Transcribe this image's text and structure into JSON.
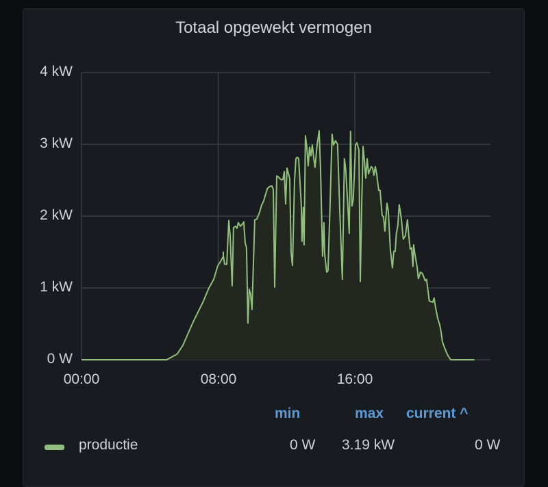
{
  "panel": {
    "title": "Totaal opgewekt vermogen"
  },
  "colors": {
    "series": "#91c07d",
    "fill": "#22271f",
    "grid": "#3a3d42",
    "legend_header": "#5b9ad6"
  },
  "axes": {
    "y_ticks": [
      "4 kW",
      "3 kW",
      "2 kW",
      "1 kW",
      "0 W"
    ],
    "x_ticks": [
      "00:00",
      "08:00",
      "16:00"
    ]
  },
  "legend": {
    "headers": {
      "min": "min",
      "max": "max",
      "current": "current ^"
    },
    "series": [
      {
        "name": "productie",
        "min": "0 W",
        "max": "3.19 kW",
        "current": "0 W"
      }
    ]
  },
  "chart_data": {
    "type": "area",
    "title": "Totaal opgewekt vermogen",
    "xlabel": "",
    "ylabel": "",
    "x_unit": "hours since 00:00",
    "y_unit": "kW",
    "xlim": [
      0,
      24
    ],
    "ylim": [
      0,
      4
    ],
    "x_tick_labels": [
      "00:00",
      "08:00",
      "16:00"
    ],
    "y_tick_labels": [
      "0 W",
      "1 kW",
      "2 kW",
      "3 kW",
      "4 kW"
    ],
    "grid": true,
    "legend_position": "bottom",
    "series": [
      {
        "name": "productie",
        "points": [
          [
            0.0,
            0.0
          ],
          [
            4.98,
            0.0
          ],
          [
            5.6,
            0.08
          ],
          [
            5.93,
            0.2
          ],
          [
            6.54,
            0.53
          ],
          [
            7.14,
            0.82
          ],
          [
            7.3,
            0.91
          ],
          [
            7.46,
            1.0
          ],
          [
            7.74,
            1.12
          ],
          [
            7.98,
            1.31
          ],
          [
            8.14,
            1.37
          ],
          [
            8.3,
            1.44
          ],
          [
            8.3,
            1.5
          ],
          [
            8.3,
            1.46
          ],
          [
            8.3,
            1.45
          ],
          [
            8.3,
            1.46
          ],
          [
            8.3,
            1.45
          ],
          [
            8.3,
            1.45
          ],
          [
            8.3,
            1.44
          ],
          [
            8.3,
            1.45
          ],
          [
            8.3,
            1.45
          ],
          [
            8.3,
            1.45
          ],
          [
            8.38,
            1.33
          ],
          [
            8.5,
            1.33
          ],
          [
            8.62,
            1.94
          ],
          [
            8.7,
            1.73
          ],
          [
            8.82,
            1.03
          ],
          [
            8.9,
            1.84
          ],
          [
            9.02,
            1.86
          ],
          [
            9.1,
            1.83
          ],
          [
            9.18,
            1.91
          ],
          [
            9.3,
            1.86
          ],
          [
            9.42,
            1.89
          ],
          [
            9.5,
            1.92
          ],
          [
            9.58,
            1.63
          ],
          [
            9.66,
            1.56
          ],
          [
            9.74,
            0.51
          ],
          [
            9.82,
            0.98
          ],
          [
            9.9,
            0.91
          ],
          [
            9.98,
            0.7
          ],
          [
            10.14,
            1.95
          ],
          [
            10.26,
            1.96
          ],
          [
            10.42,
            2.05
          ],
          [
            10.54,
            2.15
          ],
          [
            10.66,
            2.21
          ],
          [
            10.87,
            2.38
          ],
          [
            10.99,
            2.41
          ],
          [
            11.15,
            2.42
          ],
          [
            11.23,
            2.37
          ],
          [
            11.31,
            1.01
          ],
          [
            11.43,
            2.56
          ],
          [
            11.51,
            2.55
          ],
          [
            11.67,
            2.51
          ],
          [
            11.79,
            2.51
          ],
          [
            11.87,
            2.62
          ],
          [
            11.95,
            2.17
          ],
          [
            12.03,
            2.67
          ],
          [
            12.19,
            2.52
          ],
          [
            12.27,
            1.49
          ],
          [
            12.35,
            1.31
          ],
          [
            12.47,
            2.5
          ],
          [
            12.55,
            2.8
          ],
          [
            12.63,
            2.82
          ],
          [
            12.71,
            2.8
          ],
          [
            12.87,
            2.15
          ],
          [
            12.91,
            1.65
          ],
          [
            12.99,
            2.12
          ],
          [
            13.03,
            1.6
          ],
          [
            13.11,
            3.12
          ],
          [
            13.19,
            2.96
          ],
          [
            13.27,
            2.7
          ],
          [
            13.35,
            2.96
          ],
          [
            13.43,
            2.84
          ],
          [
            13.51,
            2.99
          ],
          [
            13.59,
            2.82
          ],
          [
            13.67,
            2.68
          ],
          [
            13.79,
            2.99
          ],
          [
            13.91,
            3.19
          ],
          [
            13.99,
            2.68
          ],
          [
            14.11,
            1.44
          ],
          [
            14.19,
            1.91
          ],
          [
            14.23,
            1.48
          ],
          [
            14.35,
            1.22
          ],
          [
            14.43,
            1.24
          ],
          [
            14.55,
            2.14
          ],
          [
            14.67,
            3.14
          ],
          [
            14.75,
            2.99
          ],
          [
            14.87,
            3.05
          ],
          [
            14.99,
            3.0
          ],
          [
            15.11,
            2.14
          ],
          [
            15.27,
            1.12
          ],
          [
            15.39,
            2.8
          ],
          [
            15.47,
            2.64
          ],
          [
            15.59,
            2.14
          ],
          [
            15.67,
            1.76
          ],
          [
            15.75,
            3.18
          ],
          [
            15.83,
            2.14
          ],
          [
            15.91,
            2.24
          ],
          [
            16.04,
            2.99
          ],
          [
            16.12,
            3.02
          ],
          [
            16.24,
            2.92
          ],
          [
            16.32,
            1.09
          ],
          [
            16.4,
            2.14
          ],
          [
            16.48,
            2.97
          ],
          [
            16.56,
            2.77
          ],
          [
            16.64,
            2.53
          ],
          [
            16.72,
            2.8
          ],
          [
            16.8,
            2.59
          ],
          [
            16.88,
            2.64
          ],
          [
            16.96,
            2.69
          ],
          [
            17.04,
            2.67
          ],
          [
            17.12,
            2.57
          ],
          [
            17.2,
            2.69
          ],
          [
            17.28,
            2.59
          ],
          [
            17.4,
            2.36
          ],
          [
            17.48,
            2.36
          ],
          [
            17.6,
            2.01
          ],
          [
            17.68,
            1.99
          ],
          [
            17.76,
            1.79
          ],
          [
            17.88,
            2.18
          ],
          [
            17.96,
            2.07
          ],
          [
            18.08,
            1.53
          ],
          [
            18.2,
            1.28
          ],
          [
            18.28,
            1.51
          ],
          [
            18.36,
            1.51
          ],
          [
            18.44,
            1.77
          ],
          [
            18.52,
            1.87
          ],
          [
            18.6,
            2.16
          ],
          [
            18.72,
            1.97
          ],
          [
            18.84,
            1.68
          ],
          [
            18.96,
            1.73
          ],
          [
            19.08,
            1.95
          ],
          [
            19.16,
            1.73
          ],
          [
            19.24,
            1.54
          ],
          [
            19.32,
            1.56
          ],
          [
            19.4,
            1.3
          ],
          [
            19.44,
            1.6
          ],
          [
            19.52,
            1.47
          ],
          [
            19.64,
            1.3
          ],
          [
            19.72,
            1.13
          ],
          [
            19.84,
            1.22
          ],
          [
            19.96,
            1.2
          ],
          [
            20.12,
            1.1
          ],
          [
            20.2,
            1.12
          ],
          [
            20.36,
            0.82
          ],
          [
            20.56,
            0.8
          ],
          [
            20.64,
            0.86
          ],
          [
            20.72,
            0.74
          ],
          [
            20.85,
            0.58
          ],
          [
            20.97,
            0.49
          ],
          [
            21.05,
            0.39
          ],
          [
            21.13,
            0.25
          ],
          [
            21.25,
            0.17
          ],
          [
            21.37,
            0.1
          ],
          [
            21.45,
            0.06
          ],
          [
            21.61,
            0.0
          ],
          [
            23.0,
            0.0
          ]
        ]
      }
    ]
  }
}
